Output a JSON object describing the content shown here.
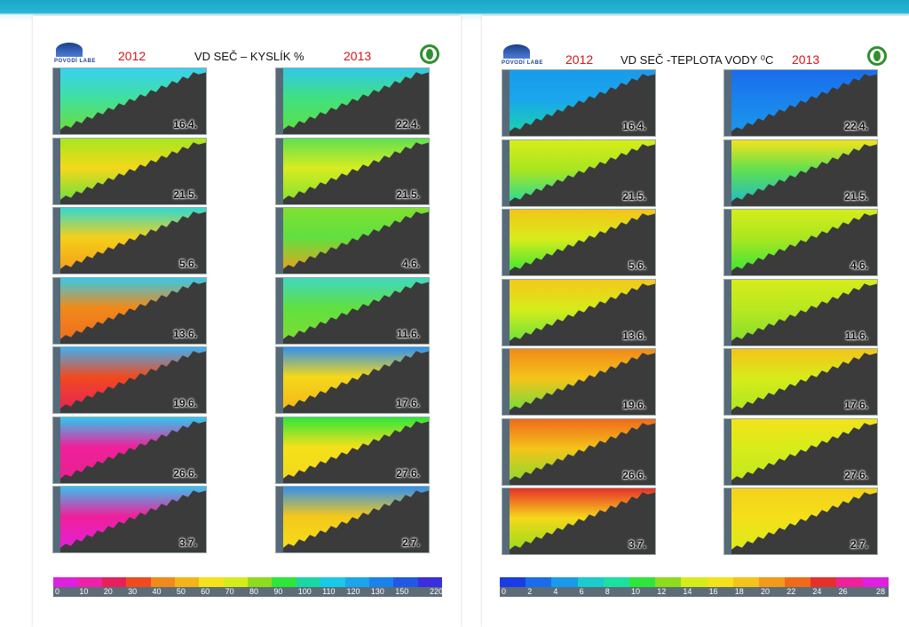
{
  "left_panel": {
    "year_left": "2012",
    "title": "VD SEČ – KYSLÍK %",
    "year_right": "2013",
    "logo_text": "POVODÍ LABE"
  },
  "right_panel": {
    "year_left": "2012",
    "title": "VD SEČ -TEPLOTA VODY ⁰C",
    "year_right": "2013",
    "logo_text": "POVODÍ LABE"
  },
  "chart_data": [
    {
      "type": "heatmap",
      "title": "VD SEČ – KYSLÍK %",
      "series": [
        {
          "name": "2012",
          "dates": [
            "16.4.",
            "21.5.",
            "5.6.",
            "13.6.",
            "19.6.",
            "26.6.",
            "3.7."
          ]
        },
        {
          "name": "2013",
          "dates": [
            "22.4.",
            "21.5.",
            "4.6.",
            "11.6.",
            "17.6.",
            "27.6.",
            "2.7."
          ]
        }
      ],
      "colorbar": {
        "ticks": [
          "0",
          "10",
          "20",
          "30",
          "40",
          "50",
          "60",
          "70",
          "80",
          "90",
          "100",
          "110",
          "120",
          "130",
          "150",
          "220"
        ],
        "colors": [
          "#e020e0",
          "#f020a8",
          "#e8205a",
          "#f04a20",
          "#f08a1a",
          "#f4b41a",
          "#f4e21a",
          "#d6ec1a",
          "#8edc1e",
          "#2ee63a",
          "#1ad8a6",
          "#1ac8e8",
          "#1aa6ec",
          "#1a82ec",
          "#2258e6",
          "#3a2ee0"
        ]
      }
    },
    {
      "type": "heatmap",
      "title": "VD SEČ -TEPLOTA VODY ⁰C",
      "series": [
        {
          "name": "2012",
          "dates": [
            "16.4.",
            "21.5.",
            "5.6.",
            "13.6.",
            "19.6.",
            "26.6.",
            "3.7."
          ]
        },
        {
          "name": "2013",
          "dates": [
            "22.4.",
            "21.5.",
            "4.6.",
            "11.6.",
            "17.6.",
            "27.6.",
            "2.7."
          ]
        }
      ],
      "colorbar": {
        "ticks": [
          "0",
          "2",
          "4",
          "6",
          "8",
          "10",
          "12",
          "14",
          "16",
          "18",
          "20",
          "22",
          "24",
          "26",
          "28"
        ],
        "colors": [
          "#1a3ce6",
          "#1a6cec",
          "#1a9aec",
          "#1acccc",
          "#1ae0a0",
          "#2ee63a",
          "#8edc1e",
          "#d6ec1a",
          "#f4e21a",
          "#f4c41a",
          "#f49a1a",
          "#f06a1a",
          "#e8302a",
          "#f0209a",
          "#e020e0"
        ]
      }
    }
  ],
  "plot_colors": {
    "oxygen_2012": [
      [
        "#3ad0f0",
        "#40e0a0",
        "#70dc30"
      ],
      [
        "#a8e620",
        "#f4d81a",
        "#60e040"
      ],
      [
        "#30d8d0",
        "#f4d01a",
        "#f49a1a"
      ],
      [
        "#38c8e8",
        "#f08a1a",
        "#f06a20"
      ],
      [
        "#40b0f0",
        "#f04a20",
        "#e8205a"
      ],
      [
        "#30c8f0",
        "#f0209a",
        "#e82090"
      ],
      [
        "#3ac0f0",
        "#f0209a",
        "#e020e0"
      ]
    ],
    "oxygen_2013": [
      [
        "#30c8e8",
        "#40e080",
        "#60e040"
      ],
      [
        "#60e050",
        "#d8ec20",
        "#80e030"
      ],
      [
        "#80e030",
        "#60e040",
        "#f49a1a"
      ],
      [
        "#40d8c0",
        "#60e040",
        "#80dc30"
      ],
      [
        "#3090f0",
        "#f4d81a",
        "#f4b41a"
      ],
      [
        "#2ee63a",
        "#f4e01a",
        "#f4d81a"
      ],
      [
        "#3090f0",
        "#f4c81a",
        "#f4e01a"
      ]
    ],
    "temp_2012": [
      [
        "#1a9aec",
        "#1aa6ec",
        "#1ad8a6"
      ],
      [
        "#d6ec1a",
        "#a8e620",
        "#1ad8a6"
      ],
      [
        "#f4c41a",
        "#d6ec1a",
        "#2ee63a"
      ],
      [
        "#f4c81a",
        "#d6ec1a",
        "#60e040"
      ],
      [
        "#f08a1a",
        "#f4c41a",
        "#60e040"
      ],
      [
        "#f06a1a",
        "#f4c41a",
        "#80dc30"
      ],
      [
        "#e8302a",
        "#f4d81a",
        "#8edc1e"
      ]
    ],
    "temp_2013": [
      [
        "#1a6cec",
        "#1a82ec",
        "#1a9aec"
      ],
      [
        "#f4e21a",
        "#60e050",
        "#1ab8d0"
      ],
      [
        "#d6ec1a",
        "#a8e620",
        "#2ee63a"
      ],
      [
        "#d6ec1a",
        "#b8e820",
        "#80dc30"
      ],
      [
        "#f4c41a",
        "#d6ec1a",
        "#a8e620"
      ],
      [
        "#f4e21a",
        "#d6ec1a",
        "#c0e820"
      ],
      [
        "#f4d01a",
        "#f4e01a",
        "#d6ec1a"
      ]
    ]
  }
}
